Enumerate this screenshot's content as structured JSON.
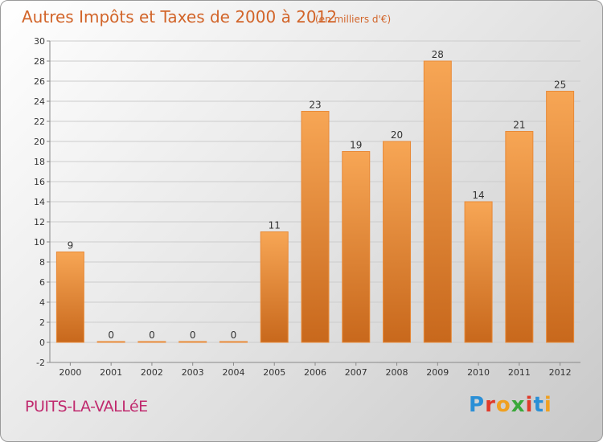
{
  "header": {
    "title": "Autres Impôts et Taxes de 2000 à 2012",
    "unit": "(en milliers d'€)"
  },
  "footer": {
    "commune": "PUITS-LA-VALLéE",
    "logo_text": "Proxiti",
    "logo_colors": [
      "#2a8fd6",
      "#e03a2a",
      "#f0a020",
      "#3aa83a",
      "#e03a2a",
      "#2a8fd6",
      "#f0a020"
    ]
  },
  "colors": {
    "bar_top": "#f7a655",
    "bar_bottom": "#c8681c",
    "grid": "#cccccc",
    "axis": "#888888"
  },
  "chart_data": {
    "type": "bar",
    "title": "Autres Impôts et Taxes de 2000 à 2012",
    "subtitle": "(en milliers d'€)",
    "categories": [
      "2000",
      "2001",
      "2002",
      "2003",
      "2004",
      "2005",
      "2006",
      "2007",
      "2008",
      "2009",
      "2010",
      "2011",
      "2012"
    ],
    "values": [
      9,
      0,
      0,
      0,
      0,
      11,
      23,
      19,
      20,
      28,
      14,
      21,
      25
    ],
    "ylim": [
      -2,
      30
    ],
    "yticks": [
      -2,
      0,
      2,
      4,
      6,
      8,
      10,
      12,
      14,
      16,
      18,
      20,
      22,
      24,
      26,
      28,
      30
    ],
    "grid": true,
    "legend": "none"
  }
}
